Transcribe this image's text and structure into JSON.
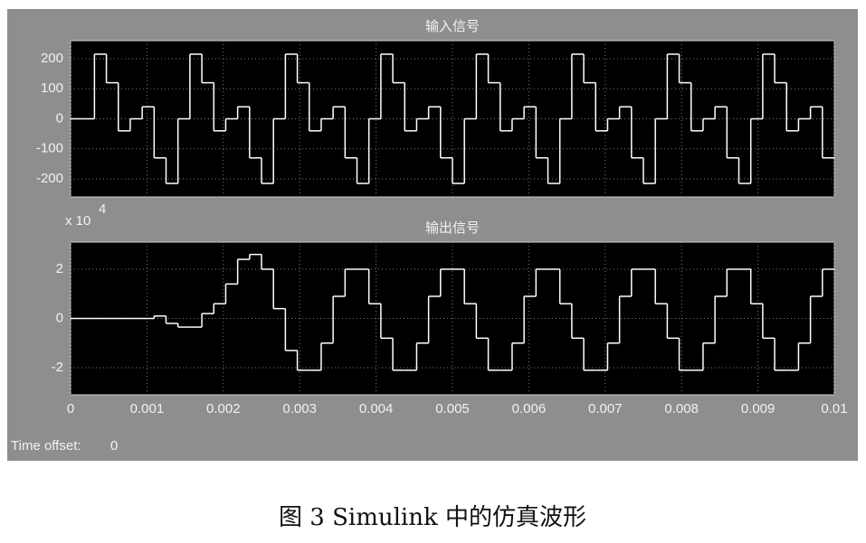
{
  "chart_data": [
    {
      "type": "step",
      "title": "输入信号",
      "x": [
        0,
        0.00015625,
        0.0003125,
        0.00046875,
        0.000625,
        0.00078125,
        0.0009375,
        0.00109375,
        0.00125,
        0.00140625,
        0.0015625,
        0.00171875,
        0.001875,
        0.00203125,
        0.0021875,
        0.00234375,
        0.0025,
        0.00265625,
        0.0028125,
        0.00296875,
        0.003125,
        0.00328125,
        0.0034375,
        0.00359375,
        0.00375,
        0.00390625,
        0.0040625,
        0.00421875,
        0.004375,
        0.00453125,
        0.0046875,
        0.00484375,
        0.005,
        0.00515625,
        0.0053125,
        0.00546875,
        0.005625,
        0.00578125,
        0.0059375,
        0.00609375,
        0.00625,
        0.00640625,
        0.0065625,
        0.00671875,
        0.006875,
        0.00703125,
        0.0071875,
        0.00734375,
        0.0075,
        0.00765625,
        0.0078125,
        0.00796875,
        0.008125,
        0.00828125,
        0.0084375,
        0.00859375,
        0.00875,
        0.00890625,
        0.0090625,
        0.00921875,
        0.009375,
        0.00953125,
        0.0096875,
        0.00984375
      ],
      "values": [
        0,
        0,
        215,
        120,
        -40,
        0,
        40,
        -130,
        -215,
        0,
        215,
        120,
        -40,
        0,
        40,
        -130,
        -215,
        0,
        215,
        120,
        -40,
        0,
        40,
        -130,
        -215,
        0,
        215,
        120,
        -40,
        0,
        40,
        -130,
        -215,
        0,
        215,
        120,
        -40,
        0,
        40,
        -130,
        -215,
        0,
        215,
        120,
        -40,
        0,
        40,
        -130,
        -215,
        0,
        215,
        120,
        -40,
        0,
        40,
        -130,
        -215,
        0,
        215,
        120,
        -40,
        0,
        40,
        -130
      ],
      "color": "#ffffff",
      "xlim": [
        0,
        0.01
      ],
      "xticks": [
        0,
        0.001,
        0.002,
        0.003,
        0.004,
        0.005,
        0.006,
        0.007,
        0.008,
        0.009,
        0.01
      ],
      "xtick_labels": false,
      "ylim": [
        -260,
        260
      ],
      "yticks": [
        -200,
        -100,
        0,
        100,
        200
      ],
      "grid": true
    },
    {
      "type": "step",
      "title": "输出信号",
      "scale_label": "x 10",
      "scale_exponent": "4",
      "x": [
        0,
        0.00015625,
        0.0003125,
        0.00046875,
        0.000625,
        0.00078125,
        0.0009375,
        0.00109375,
        0.00125,
        0.00140625,
        0.0015625,
        0.00171875,
        0.001875,
        0.00203125,
        0.0021875,
        0.00234375,
        0.0025,
        0.00265625,
        0.0028125,
        0.00296875,
        0.003125,
        0.00328125,
        0.0034375,
        0.00359375,
        0.00375,
        0.00390625,
        0.0040625,
        0.00421875,
        0.004375,
        0.00453125,
        0.0046875,
        0.00484375,
        0.005,
        0.00515625,
        0.0053125,
        0.00546875,
        0.005625,
        0.00578125,
        0.0059375,
        0.00609375,
        0.00625,
        0.00640625,
        0.0065625,
        0.00671875,
        0.006875,
        0.00703125,
        0.0071875,
        0.00734375,
        0.0075,
        0.00765625,
        0.0078125,
        0.00796875,
        0.008125,
        0.00828125,
        0.0084375,
        0.00859375,
        0.00875,
        0.00890625,
        0.0090625,
        0.00921875,
        0.009375,
        0.00953125,
        0.0096875,
        0.00984375
      ],
      "values": [
        0,
        0,
        0,
        0,
        0,
        0,
        0,
        0.1,
        -0.2,
        -0.35,
        -0.35,
        0.2,
        0.6,
        1.4,
        2.4,
        2.6,
        2.0,
        0.4,
        -1.3,
        -2.1,
        -2.1,
        -1.0,
        0.9,
        2.0,
        2.0,
        0.6,
        -0.8,
        -2.1,
        -2.1,
        -1.0,
        0.9,
        2.0,
        2.0,
        0.6,
        -0.8,
        -2.1,
        -2.1,
        -1.0,
        0.9,
        2.0,
        2.0,
        0.6,
        -0.8,
        -2.1,
        -2.1,
        -1.0,
        0.9,
        2.0,
        2.0,
        0.6,
        -0.8,
        -2.1,
        -2.1,
        -1.0,
        0.9,
        2.0,
        2.0,
        0.6,
        -0.8,
        -2.1,
        -2.1,
        -1.0,
        0.9,
        2.0
      ],
      "color": "#ffffff",
      "xlim": [
        0,
        0.01
      ],
      "xticks": [
        0,
        0.001,
        0.002,
        0.003,
        0.004,
        0.005,
        0.006,
        0.007,
        0.008,
        0.009,
        0.01
      ],
      "xtick_labels": true,
      "ylim": [
        -3.1,
        3.1
      ],
      "yticks": [
        -2,
        0,
        2
      ],
      "grid": true
    }
  ],
  "time_offset": {
    "label": "Time offset:",
    "value": 0
  },
  "caption": "图 3   Simulink 中的仿真波形"
}
